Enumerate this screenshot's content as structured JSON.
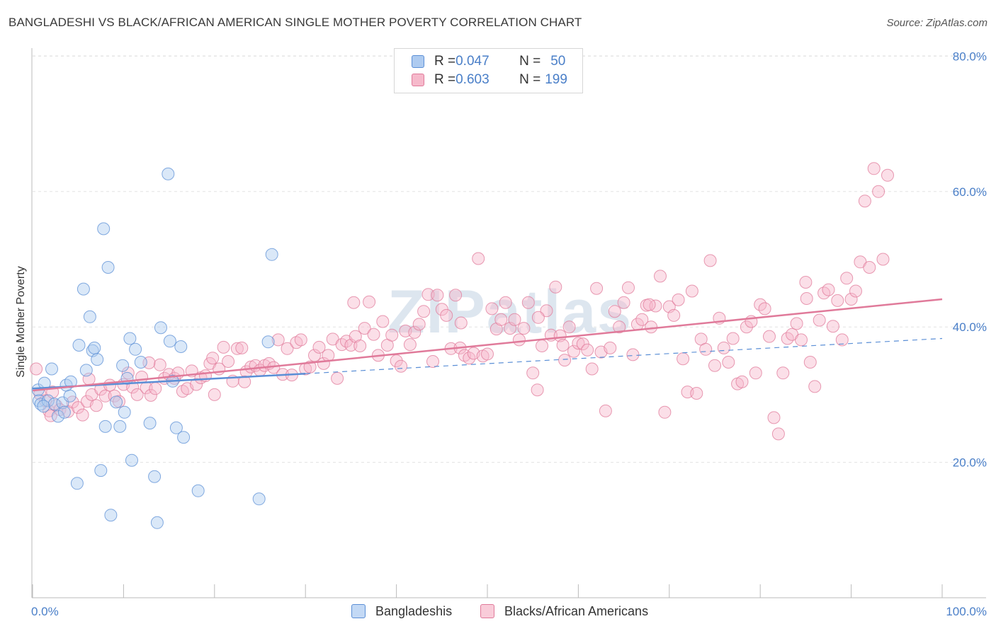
{
  "title": "BANGLADESHI VS BLACK/AFRICAN AMERICAN SINGLE MOTHER POVERTY CORRELATION CHART",
  "source": "Source: ZipAtlas.com",
  "watermark": "ZIPatlas",
  "legend": {
    "rows": [
      {
        "r_label": "R = ",
        "r_value": "0.047",
        "n_label": "N = ",
        "n_value": "50",
        "color": "#aecbf0",
        "stroke": "#5b8fd6"
      },
      {
        "r_label": "R = ",
        "r_value": "0.603",
        "n_label": "N = ",
        "n_value": "199",
        "color": "#f6b9cb",
        "stroke": "#e07a9a"
      }
    ]
  },
  "bottom_legend": [
    {
      "label": "Bangladeshis",
      "color": "#c3d9f5",
      "stroke": "#5b8fd6"
    },
    {
      "label": "Blacks/African Americans",
      "color": "#f9ccd9",
      "stroke": "#e07a9a"
    }
  ],
  "chart_data": {
    "type": "scatter",
    "title": "BANGLADESHI VS BLACK/AFRICAN AMERICAN SINGLE MOTHER POVERTY CORRELATION CHART",
    "xlabel": "",
    "ylabel": "Single Mother Poverty",
    "xlim": [
      0,
      100
    ],
    "ylim": [
      0,
      82
    ],
    "x_tick_labels": [
      "0.0%",
      "100.0%"
    ],
    "y_ticks": [
      20,
      40,
      60,
      80
    ],
    "y_tick_labels": [
      "20.0%",
      "40.0%",
      "60.0%",
      "80.0%"
    ],
    "grid": true,
    "legend_position": "top-center",
    "series": [
      {
        "name": "Bangladeshis",
        "color": "#5b8fd6",
        "fill": "#aecbf0",
        "trend": {
          "x0": 0,
          "y0": 30.9,
          "x1": 30,
          "y1": 33.1,
          "dashed_to_x": 100,
          "dashed_to_y": 38.3
        },
        "points": [
          [
            0.6,
            30.7
          ],
          [
            0.7,
            29.1
          ],
          [
            0.9,
            28.6
          ],
          [
            1.3,
            31.7
          ],
          [
            1.7,
            29.1
          ],
          [
            2.1,
            33.8
          ],
          [
            2.4,
            28.6
          ],
          [
            2.8,
            26.8
          ],
          [
            3.3,
            28.8
          ],
          [
            3.5,
            27.4
          ],
          [
            3.7,
            31.4
          ],
          [
            4.1,
            29.8
          ],
          [
            4.2,
            31.9
          ],
          [
            4.9,
            16.9
          ],
          [
            5.1,
            37.3
          ],
          [
            5.6,
            45.6
          ],
          [
            5.9,
            33.6
          ],
          [
            6.3,
            41.5
          ],
          [
            6.6,
            36.5
          ],
          [
            6.8,
            36.9
          ],
          [
            7.1,
            35.2
          ],
          [
            7.5,
            18.8
          ],
          [
            7.8,
            54.5
          ],
          [
            8.0,
            25.3
          ],
          [
            8.3,
            48.8
          ],
          [
            8.6,
            12.2
          ],
          [
            9.2,
            28.9
          ],
          [
            9.6,
            25.3
          ],
          [
            9.9,
            34.3
          ],
          [
            10.1,
            27.4
          ],
          [
            10.4,
            32.4
          ],
          [
            10.7,
            38.3
          ],
          [
            10.9,
            20.3
          ],
          [
            11.3,
            36.7
          ],
          [
            11.9,
            34.8
          ],
          [
            12.9,
            25.8
          ],
          [
            13.4,
            17.9
          ],
          [
            13.7,
            11.1
          ],
          [
            14.1,
            39.9
          ],
          [
            14.9,
            62.6
          ],
          [
            15.1,
            37.9
          ],
          [
            15.4,
            32.0
          ],
          [
            15.8,
            25.1
          ],
          [
            16.3,
            37.1
          ],
          [
            16.6,
            23.7
          ],
          [
            18.2,
            15.8
          ],
          [
            24.9,
            14.6
          ],
          [
            25.9,
            37.8
          ],
          [
            26.3,
            50.7
          ],
          [
            1.2,
            28.3
          ]
        ]
      },
      {
        "name": "Blacks/African Americans",
        "color": "#e07a9a",
        "fill": "#f6b9cb",
        "trend": {
          "x0": 0,
          "y0": 30.6,
          "x1": 100,
          "y1": 44.1
        },
        "points": [
          [
            0.4,
            33.8
          ],
          [
            0.8,
            30.1
          ],
          [
            1.4,
            29.1
          ],
          [
            1.8,
            27.6
          ],
          [
            2.0,
            26.9
          ],
          [
            2.6,
            28.4
          ],
          [
            3.0,
            27.8
          ],
          [
            3.9,
            27.5
          ],
          [
            4.4,
            28.9
          ],
          [
            5.0,
            28.1
          ],
          [
            5.5,
            27.0
          ],
          [
            6.0,
            29.0
          ],
          [
            6.5,
            30.0
          ],
          [
            7.0,
            28.4
          ],
          [
            7.5,
            30.8
          ],
          [
            8.0,
            29.8
          ],
          [
            8.5,
            31.4
          ],
          [
            9.0,
            29.8
          ],
          [
            9.5,
            29.0
          ],
          [
            10.0,
            31.5
          ],
          [
            10.5,
            33.2
          ],
          [
            11.0,
            31.1
          ],
          [
            11.5,
            30.0
          ],
          [
            12.0,
            32.6
          ],
          [
            12.5,
            31.0
          ],
          [
            13.0,
            29.9
          ],
          [
            13.5,
            30.9
          ],
          [
            14.0,
            34.4
          ],
          [
            14.5,
            32.4
          ],
          [
            15.0,
            33.0
          ],
          [
            15.6,
            32.4
          ],
          [
            16.0,
            33.2
          ],
          [
            16.5,
            30.5
          ],
          [
            17.0,
            30.9
          ],
          [
            17.5,
            33.5
          ],
          [
            18.0,
            31.5
          ],
          [
            18.5,
            32.5
          ],
          [
            19.0,
            32.8
          ],
          [
            19.5,
            34.6
          ],
          [
            20.0,
            30.0
          ],
          [
            20.5,
            33.8
          ],
          [
            21.0,
            37.0
          ],
          [
            21.5,
            34.9
          ],
          [
            22.0,
            32.0
          ],
          [
            22.5,
            36.8
          ],
          [
            23.0,
            36.9
          ],
          [
            23.5,
            33.4
          ],
          [
            24.0,
            34.1
          ],
          [
            24.5,
            34.3
          ],
          [
            25.0,
            33.6
          ],
          [
            25.5,
            34.3
          ],
          [
            26.0,
            34.6
          ],
          [
            26.5,
            34.0
          ],
          [
            27.0,
            38.1
          ],
          [
            27.5,
            33.0
          ],
          [
            28.0,
            36.8
          ],
          [
            28.5,
            32.9
          ],
          [
            29.0,
            37.7
          ],
          [
            29.5,
            38.1
          ],
          [
            30.0,
            33.8
          ],
          [
            30.5,
            34.1
          ],
          [
            31.0,
            35.8
          ],
          [
            31.5,
            37.0
          ],
          [
            32.0,
            34.6
          ],
          [
            32.5,
            35.8
          ],
          [
            33.0,
            38.2
          ],
          [
            33.5,
            32.4
          ],
          [
            34.0,
            37.4
          ],
          [
            34.5,
            37.9
          ],
          [
            35.0,
            37.3
          ],
          [
            35.5,
            38.6
          ],
          [
            36.0,
            37.2
          ],
          [
            36.5,
            39.8
          ],
          [
            37.0,
            43.7
          ],
          [
            37.5,
            38.9
          ],
          [
            38.0,
            35.8
          ],
          [
            38.5,
            40.8
          ],
          [
            39.0,
            37.3
          ],
          [
            39.5,
            38.8
          ],
          [
            40.0,
            35.0
          ],
          [
            40.5,
            34.2
          ],
          [
            41.0,
            39.4
          ],
          [
            41.5,
            37.4
          ],
          [
            42.0,
            39.2
          ],
          [
            42.5,
            40.4
          ],
          [
            43.0,
            42.3
          ],
          [
            43.5,
            44.8
          ],
          [
            44.0,
            34.9
          ],
          [
            44.5,
            44.7
          ],
          [
            45.0,
            42.6
          ],
          [
            45.5,
            41.7
          ],
          [
            46.0,
            36.8
          ],
          [
            46.5,
            44.7
          ],
          [
            47.0,
            36.9
          ],
          [
            47.5,
            35.8
          ],
          [
            48.0,
            35.4
          ],
          [
            48.5,
            36.1
          ],
          [
            49.0,
            50.1
          ],
          [
            49.5,
            35.7
          ],
          [
            50.0,
            36.0
          ],
          [
            50.5,
            42.7
          ],
          [
            51.0,
            39.7
          ],
          [
            51.5,
            41.1
          ],
          [
            52.0,
            43.6
          ],
          [
            52.5,
            39.8
          ],
          [
            53.0,
            41.1
          ],
          [
            53.5,
            38.1
          ],
          [
            54.0,
            39.8
          ],
          [
            54.5,
            43.6
          ],
          [
            55.0,
            33.2
          ],
          [
            55.5,
            30.7
          ],
          [
            56.0,
            37.2
          ],
          [
            56.5,
            42.4
          ],
          [
            57.0,
            38.8
          ],
          [
            57.5,
            45.9
          ],
          [
            58.0,
            38.7
          ],
          [
            58.5,
            35.1
          ],
          [
            59.0,
            40.0
          ],
          [
            59.5,
            36.4
          ],
          [
            60.0,
            37.6
          ],
          [
            60.5,
            37.5
          ],
          [
            61.0,
            36.6
          ],
          [
            61.5,
            33.8
          ],
          [
            62.0,
            45.7
          ],
          [
            62.5,
            36.3
          ],
          [
            63.0,
            27.6
          ],
          [
            63.5,
            36.9
          ],
          [
            64.0,
            42.3
          ],
          [
            64.5,
            40.0
          ],
          [
            65.0,
            43.6
          ],
          [
            65.5,
            45.8
          ],
          [
            66.0,
            35.9
          ],
          [
            66.5,
            40.4
          ],
          [
            67.0,
            41.1
          ],
          [
            67.5,
            43.2
          ],
          [
            68.0,
            40.0
          ],
          [
            68.5,
            43.1
          ],
          [
            69.0,
            47.5
          ],
          [
            69.5,
            27.4
          ],
          [
            70.0,
            43.0
          ],
          [
            70.5,
            41.7
          ],
          [
            71.0,
            44.0
          ],
          [
            71.5,
            35.3
          ],
          [
            72.0,
            30.4
          ],
          [
            72.5,
            45.3
          ],
          [
            73.0,
            30.2
          ],
          [
            73.5,
            38.2
          ],
          [
            74.0,
            36.7
          ],
          [
            74.5,
            49.8
          ],
          [
            75.0,
            34.3
          ],
          [
            75.5,
            41.3
          ],
          [
            76.0,
            36.9
          ],
          [
            76.5,
            34.8
          ],
          [
            77.0,
            38.3
          ],
          [
            77.5,
            31.6
          ],
          [
            78.0,
            31.9
          ],
          [
            78.5,
            40.0
          ],
          [
            79.0,
            40.8
          ],
          [
            79.5,
            33.2
          ],
          [
            80.0,
            43.3
          ],
          [
            80.5,
            42.7
          ],
          [
            81.0,
            38.6
          ],
          [
            81.5,
            26.6
          ],
          [
            82.0,
            24.2
          ],
          [
            82.5,
            33.2
          ],
          [
            83.0,
            38.3
          ],
          [
            83.5,
            38.9
          ],
          [
            84.0,
            40.5
          ],
          [
            84.5,
            38.1
          ],
          [
            85.0,
            46.6
          ],
          [
            85.5,
            34.8
          ],
          [
            86.0,
            31.2
          ],
          [
            86.5,
            41.0
          ],
          [
            87.0,
            45.0
          ],
          [
            87.5,
            45.5
          ],
          [
            88.0,
            40.1
          ],
          [
            88.5,
            43.9
          ],
          [
            89.0,
            38.1
          ],
          [
            89.5,
            47.2
          ],
          [
            90.0,
            44.1
          ],
          [
            90.5,
            45.3
          ],
          [
            91.0,
            49.6
          ],
          [
            91.5,
            58.6
          ],
          [
            92.0,
            48.8
          ],
          [
            92.5,
            63.4
          ],
          [
            93.0,
            60.0
          ],
          [
            93.5,
            50.0
          ],
          [
            94.0,
            62.4
          ],
          [
            58.3,
            37.3
          ],
          [
            47.1,
            40.6
          ],
          [
            35.3,
            43.6
          ],
          [
            55.6,
            41.4
          ],
          [
            23.3,
            31.9
          ],
          [
            12.8,
            34.7
          ],
          [
            6.2,
            32.3
          ],
          [
            2.2,
            30.4
          ],
          [
            19.8,
            35.4
          ],
          [
            67.8,
            43.3
          ],
          [
            85.1,
            44.2
          ]
        ]
      }
    ]
  }
}
